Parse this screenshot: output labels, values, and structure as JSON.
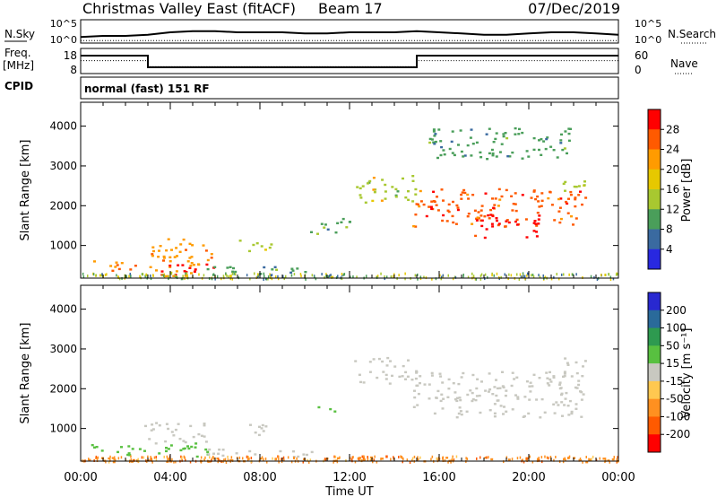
{
  "header": {
    "station": "Christmas Valley East (fitACF)",
    "beam": "Beam 17",
    "date": "07/Dec/2019",
    "nsky_label": "N.Sky",
    "nsearch_label": "N.Search",
    "freq_label": "Freq.",
    "freq_unit": "[MHz]",
    "nave_label": "Nave",
    "cpid_label": "CPID",
    "cpid_value": "normal (fast) 151 RF"
  },
  "chart_data": [
    {
      "type": "line",
      "panel": "noise",
      "series": [
        {
          "name": "N.Sky",
          "x": [
            0,
            1,
            2,
            3,
            4,
            5,
            6,
            7,
            8,
            9,
            10,
            11,
            12,
            13,
            14,
            15,
            16,
            17,
            18,
            19,
            20,
            21,
            22,
            23,
            24
          ],
          "values": [
            1.3,
            1.4,
            1.4,
            1.5,
            1.7,
            1.8,
            1.8,
            1.7,
            1.7,
            1.7,
            1.6,
            1.6,
            1.7,
            1.7,
            1.7,
            1.8,
            1.7,
            1.6,
            1.5,
            1.5,
            1.6,
            1.7,
            1.7,
            1.6,
            1.5
          ]
        },
        {
          "name": "N.Search",
          "x": [
            0,
            24
          ],
          "values": [
            1.0,
            1.0
          ]
        }
      ],
      "left_ticks": [
        "10^5",
        "10^0"
      ],
      "right_ticks": [
        "10^5",
        "10^0"
      ],
      "xlim": [
        0,
        24
      ]
    },
    {
      "type": "line",
      "panel": "frequency",
      "series": [
        {
          "name": "Freq.",
          "x": [
            0,
            3,
            3,
            15,
            15,
            24
          ],
          "values": [
            16,
            16,
            9.5,
            9.5,
            16,
            16
          ]
        },
        {
          "name": "Nave",
          "x": [
            0,
            3,
            3,
            15,
            15,
            24
          ],
          "values": [
            24,
            24,
            18,
            18,
            24,
            24
          ]
        }
      ],
      "left_ticks": [
        "18",
        "8"
      ],
      "right_ticks": [
        "60",
        "0"
      ],
      "xlim": [
        0,
        24
      ]
    },
    {
      "type": "heatmap",
      "panel": "power",
      "title": "",
      "xlabel": "",
      "ylabel": "Slant Range [km]",
      "colorbar_label": "Power [dB]",
      "colorbar_ticks": [
        "28",
        "24",
        "20",
        "16",
        "12",
        "8",
        "4"
      ],
      "colors": [
        "#ff0000",
        "#ff5a00",
        "#ff9b00",
        "#e6c800",
        "#a8c830",
        "#4a9e5a",
        "#3a6aa0",
        "#2828e0"
      ],
      "yticks": [
        "4000",
        "3000",
        "2000",
        "1000"
      ],
      "ylim": [
        180,
        4600
      ],
      "xlim": [
        0,
        24
      ],
      "regions": [
        {
          "t0": 0.3,
          "t1": 1.8,
          "r0": 450,
          "r1": 650,
          "value": 20
        },
        {
          "t0": 1.0,
          "t1": 2.6,
          "r0": 350,
          "r1": 550,
          "value": 26
        },
        {
          "t0": 2.8,
          "t1": 5.8,
          "r0": 250,
          "r1": 1200,
          "value": 22
        },
        {
          "t0": 3.5,
          "t1": 6.0,
          "r0": 250,
          "r1": 550,
          "value": 28
        },
        {
          "t0": 5.5,
          "t1": 10.5,
          "r0": 300,
          "r1": 500,
          "value": 10
        },
        {
          "t0": 7.0,
          "t1": 8.5,
          "r0": 850,
          "r1": 1150,
          "value": 12
        },
        {
          "t0": 10.0,
          "t1": 12.0,
          "r0": 1300,
          "r1": 1700,
          "value": 8
        },
        {
          "t0": 12.2,
          "t1": 15.0,
          "r0": 2100,
          "r1": 2800,
          "value": 14
        },
        {
          "t0": 14.8,
          "t1": 22.5,
          "r0": 1500,
          "r1": 2450,
          "value": 24
        },
        {
          "t0": 17.5,
          "t1": 20.5,
          "r0": 1200,
          "r1": 1800,
          "value": 28
        },
        {
          "t0": 21.5,
          "t1": 22.6,
          "r0": 2300,
          "r1": 2800,
          "value": 14
        },
        {
          "t0": 15.5,
          "t1": 22.0,
          "r0": 3200,
          "r1": 4000,
          "value": 8
        }
      ]
    },
    {
      "type": "heatmap",
      "panel": "velocity",
      "xlabel": "Time UT",
      "ylabel": "Slant Range [km]",
      "colorbar_label": "Velocity [m s⁻¹]",
      "colorbar_ticks": [
        "200",
        "100",
        "50",
        "15",
        "-15",
        "-50",
        "-100",
        "-200"
      ],
      "colors": [
        "#2828d0",
        "#2a6a9a",
        "#2e9a50",
        "#58c040",
        "#c8c8c0",
        "#ffc850",
        "#ff9020",
        "#ff5a00",
        "#ff0000"
      ],
      "yticks": [
        "4000",
        "3000",
        "2000",
        "1000"
      ],
      "xticks": [
        "00:00",
        "04:00",
        "08:00",
        "12:00",
        "16:00",
        "20:00",
        "00:00"
      ],
      "ylim": [
        180,
        4600
      ],
      "xlim": [
        0,
        24
      ],
      "regions": [
        {
          "t0": 0.3,
          "t1": 2.6,
          "r0": 350,
          "r1": 650,
          "value": 40
        },
        {
          "t0": 2.8,
          "t1": 5.8,
          "r0": 300,
          "r1": 650,
          "value": 30
        },
        {
          "t0": 2.8,
          "t1": 5.6,
          "r0": 650,
          "r1": 1200,
          "value": 0
        },
        {
          "t0": 5.5,
          "t1": 10.5,
          "r0": 300,
          "r1": 500,
          "value": 0
        },
        {
          "t0": 7.0,
          "t1": 8.5,
          "r0": 850,
          "r1": 1150,
          "value": 0
        },
        {
          "t0": 10.5,
          "t1": 11.5,
          "r0": 1400,
          "r1": 1600,
          "value": 40
        },
        {
          "t0": 12.2,
          "t1": 15.0,
          "r0": 2100,
          "r1": 2800,
          "value": 0
        },
        {
          "t0": 14.8,
          "t1": 22.5,
          "r0": 1300,
          "r1": 2450,
          "value": 0
        },
        {
          "t0": 21.5,
          "t1": 22.6,
          "r0": 2300,
          "r1": 2800,
          "value": 0
        },
        {
          "t0": 0.0,
          "t1": 24.0,
          "r0": 180,
          "r1": 300,
          "value": -60
        }
      ]
    }
  ]
}
